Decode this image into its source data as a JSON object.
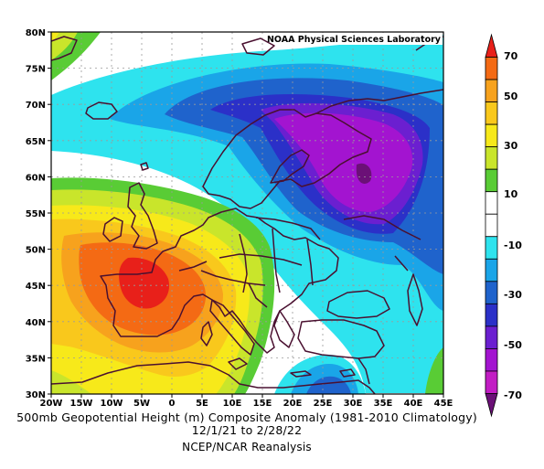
{
  "map": {
    "credit": "NOAA Physical Sciences Laboratory",
    "lat_labels": [
      "80N",
      "75N",
      "70N",
      "65N",
      "60N",
      "55N",
      "50N",
      "45N",
      "40N",
      "35N",
      "30N"
    ],
    "lon_labels": [
      "20W",
      "15W",
      "10W",
      "5W",
      "0",
      "5E",
      "10E",
      "15E",
      "20E",
      "25E",
      "30E",
      "35E",
      "40E",
      "45E"
    ]
  },
  "caption": {
    "line1": "500mb Geopotential Height (m) Composite Anomaly (1981-2010 Climatology)",
    "line2": "12/1/21  to 2/28/22",
    "line3": "NCEP/NCAR Reanalysis"
  },
  "colorbar": {
    "labels": [
      "70",
      "50",
      "30",
      "10",
      "-10",
      "-30",
      "-50",
      "-70"
    ],
    "levels": [
      {
        "color": "#e8201a"
      },
      {
        "color": "#f46a14"
      },
      {
        "color": "#f7a21d"
      },
      {
        "color": "#f9c81c"
      },
      {
        "color": "#f7e91a"
      },
      {
        "color": "#c9e52b"
      },
      {
        "color": "#59cc35"
      },
      {
        "color": "#ffffff"
      },
      {
        "color": "#ffffff"
      },
      {
        "color": "#2ee3ee"
      },
      {
        "color": "#1aa5e8"
      },
      {
        "color": "#1f63cc"
      },
      {
        "color": "#2b30c8"
      },
      {
        "color": "#6b1fd0"
      },
      {
        "color": "#a314d0"
      },
      {
        "color": "#c21dc4"
      },
      {
        "color": "#6b1077"
      }
    ]
  }
}
